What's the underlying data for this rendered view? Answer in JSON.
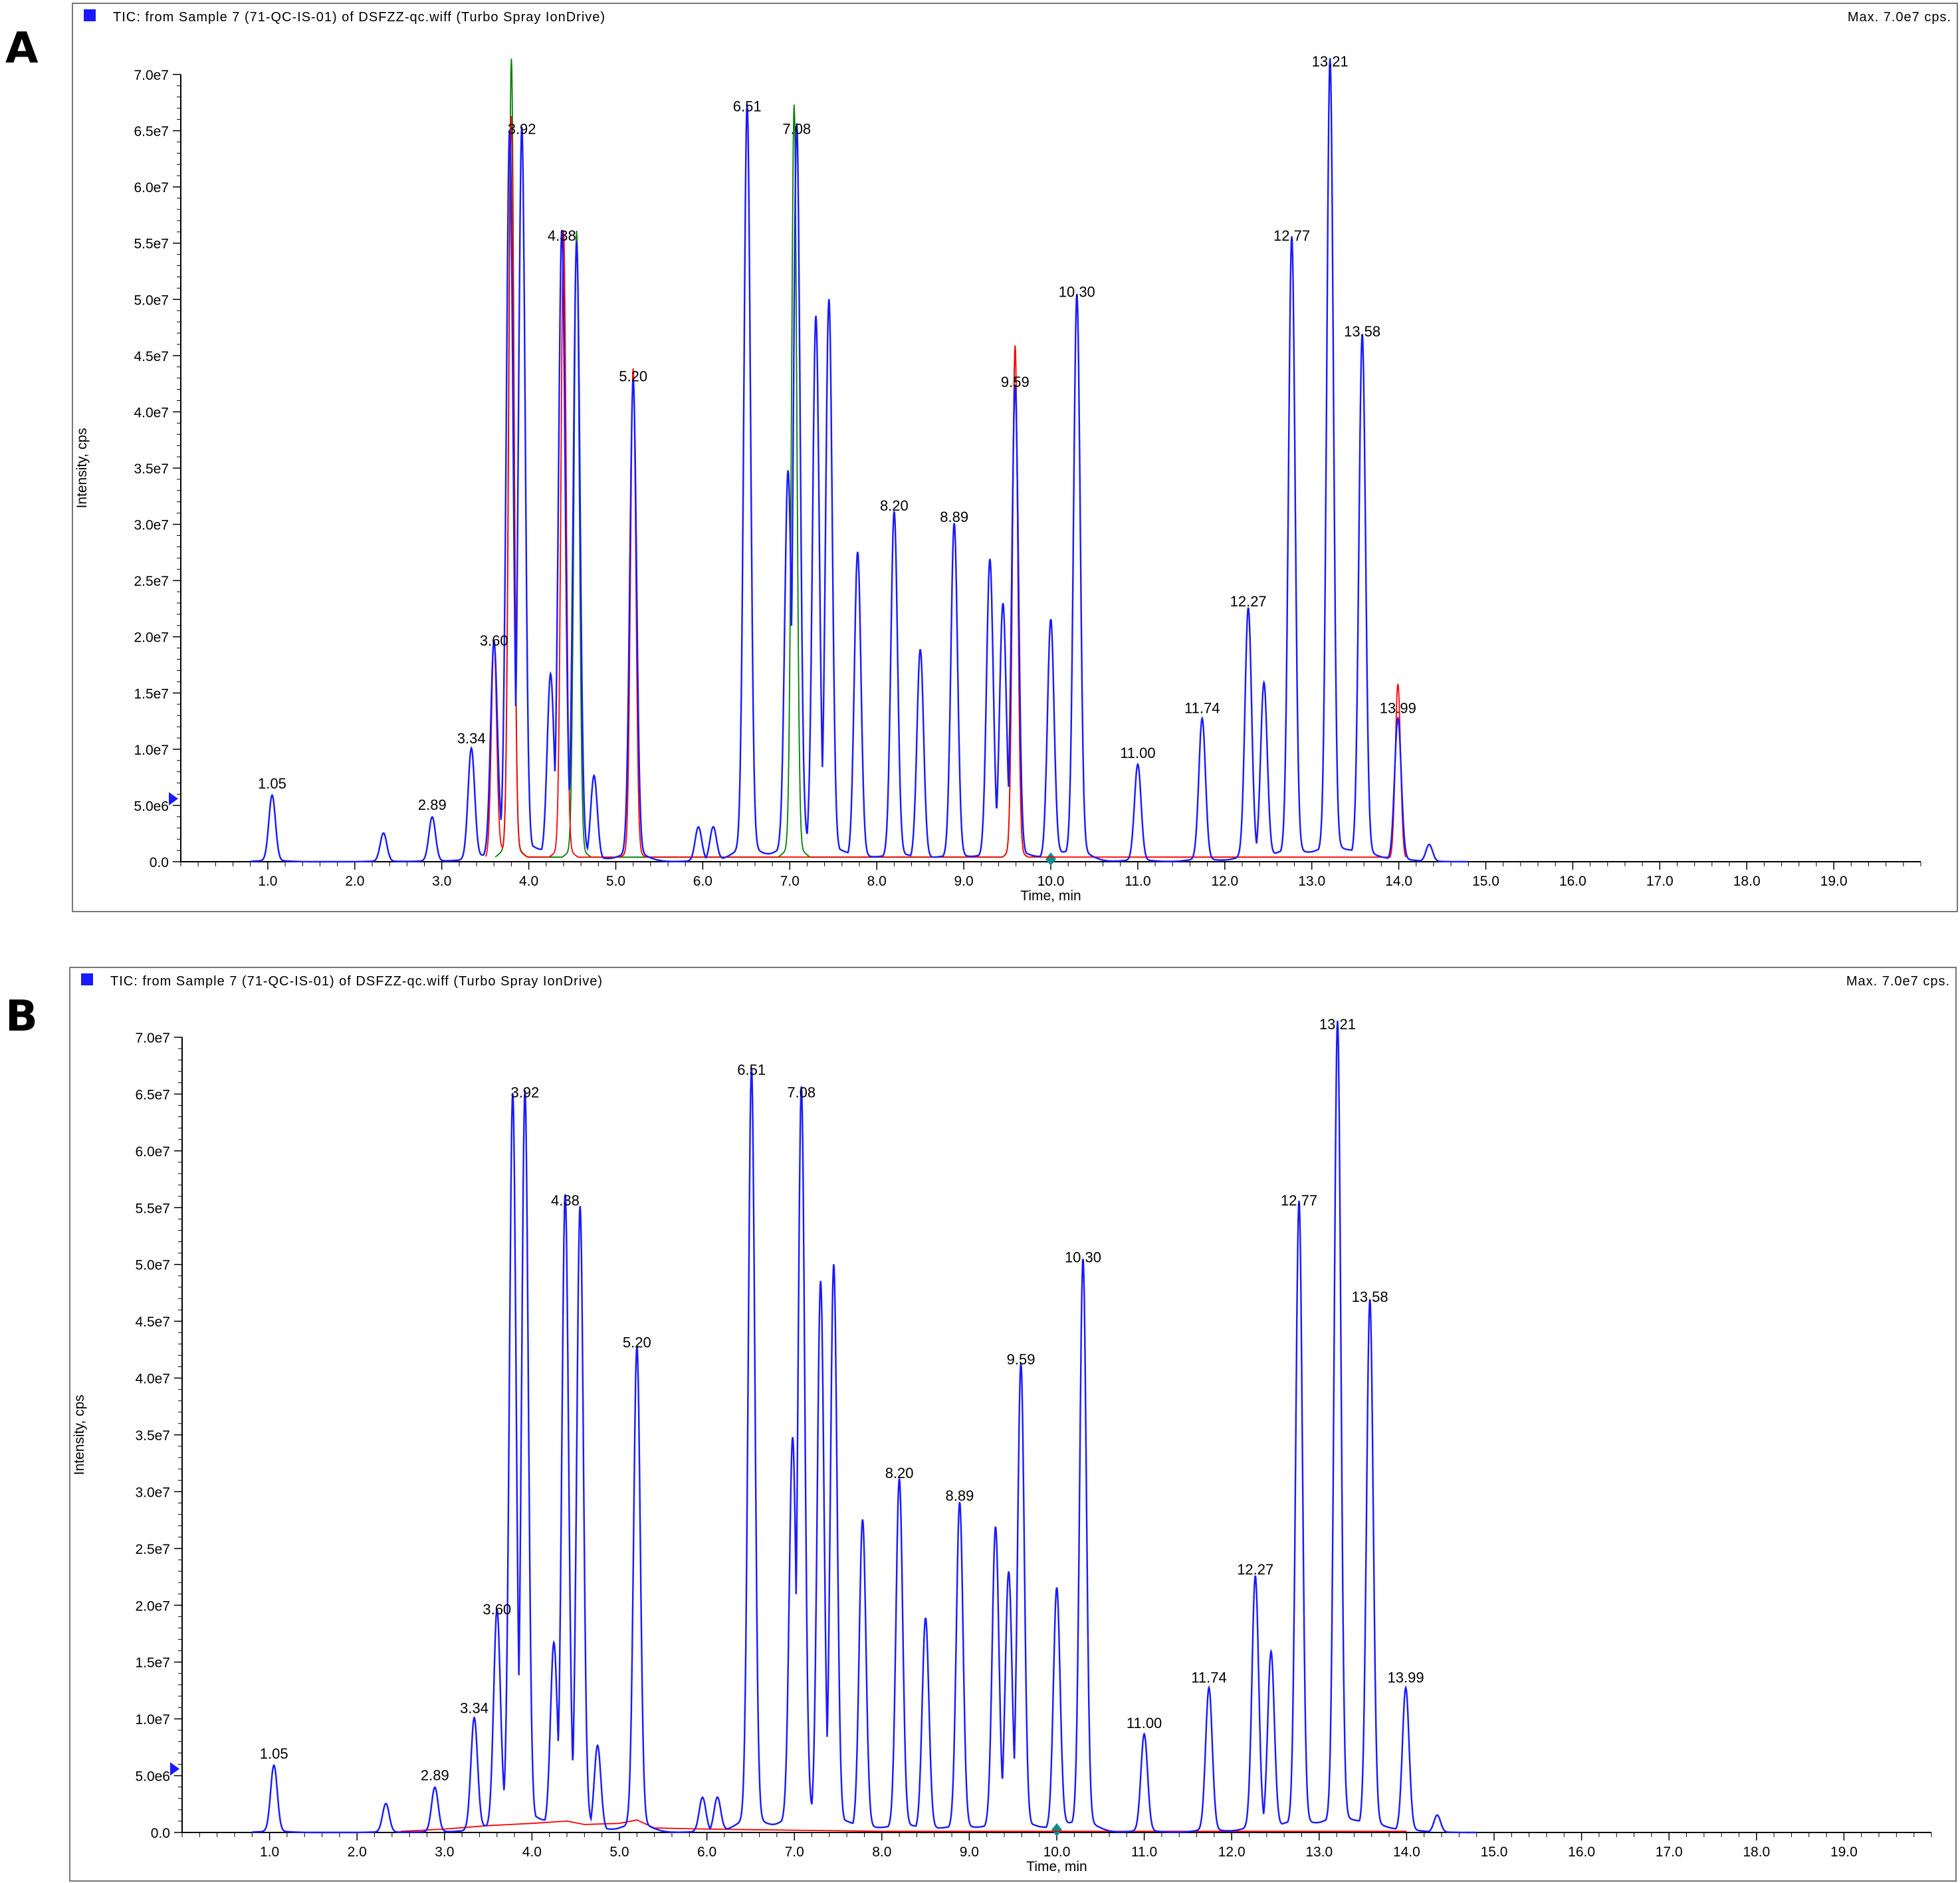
{
  "panels": [
    {
      "letter": "A",
      "title": "TIC: from Sample 7 (71-QC-IS-01) of DSFZZ-qc.wiff (Turbo Spray IonDrive)",
      "max_label": "Max. 7.0e7 cps.",
      "xlabel": "Time, min",
      "ylabel": "Intensity, cps",
      "peaks": [
        {
          "label": "1.05",
          "x": 1.05,
          "y": 5800000.0
        },
        {
          "label": "2.89",
          "x": 2.89,
          "y": 3900000.0
        },
        {
          "label": "3.34",
          "x": 3.34,
          "y": 9800000.0
        },
        {
          "label": "3.60",
          "x": 3.6,
          "y": 18500000.0
        },
        {
          "label": "3.92",
          "x": 3.92,
          "y": 64000000.0
        },
        {
          "label": "4.38",
          "x": 4.38,
          "y": 54500000.0
        },
        {
          "label": "5.20",
          "x": 5.2,
          "y": 42000000.0
        },
        {
          "label": "6.51",
          "x": 6.51,
          "y": 66000000.0
        },
        {
          "label": "7.08",
          "x": 7.08,
          "y": 64000000.0
        },
        {
          "label": "8.20",
          "x": 8.2,
          "y": 30500000.0
        },
        {
          "label": "8.89",
          "x": 8.89,
          "y": 29500000.0
        },
        {
          "label": "9.59",
          "x": 9.59,
          "y": 41500000.0
        },
        {
          "label": "10.30",
          "x": 10.3,
          "y": 49500000.0
        },
        {
          "label": "11.00",
          "x": 11.0,
          "y": 8500000.0
        },
        {
          "label": "11.74",
          "x": 11.74,
          "y": 12500000.0
        },
        {
          "label": "12.27",
          "x": 12.27,
          "y": 22000000.0
        },
        {
          "label": "12.77",
          "x": 12.77,
          "y": 54500000.0
        },
        {
          "label": "13.21",
          "x": 13.21,
          "y": 70000000.0
        },
        {
          "label": "13.58",
          "x": 13.58,
          "y": 46000000.0
        },
        {
          "label": "13.99",
          "x": 13.99,
          "y": 12500000.0
        }
      ]
    },
    {
      "letter": "B",
      "title": "TIC: from Sample 7 (71-QC-IS-01) of DSFZZ-qc.wiff (Turbo Spray IonDrive)",
      "max_label": "Max. 7.0e7 cps.",
      "xlabel": "Time, min",
      "ylabel": "Intensity, cps",
      "peaks": [
        {
          "label": "1.05",
          "x": 1.05,
          "y": 5800000.0
        },
        {
          "label": "2.89",
          "x": 2.89,
          "y": 3900000.0
        },
        {
          "label": "3.34",
          "x": 3.34,
          "y": 9800000.0
        },
        {
          "label": "3.60",
          "x": 3.6,
          "y": 18500000.0
        },
        {
          "label": "3.92",
          "x": 3.92,
          "y": 64000000.0
        },
        {
          "label": "4.38",
          "x": 4.38,
          "y": 54500000.0
        },
        {
          "label": "5.20",
          "x": 5.2,
          "y": 42000000.0
        },
        {
          "label": "6.51",
          "x": 6.51,
          "y": 66000000.0
        },
        {
          "label": "7.08",
          "x": 7.08,
          "y": 64000000.0
        },
        {
          "label": "8.20",
          "x": 8.2,
          "y": 30500000.0
        },
        {
          "label": "8.89",
          "x": 8.89,
          "y": 28500000.0
        },
        {
          "label": "9.59",
          "x": 9.59,
          "y": 40500000.0
        },
        {
          "label": "10.30",
          "x": 10.3,
          "y": 49500000.0
        },
        {
          "label": "11.00",
          "x": 11.0,
          "y": 8500000.0
        },
        {
          "label": "11.74",
          "x": 11.74,
          "y": 12500000.0
        },
        {
          "label": "12.27",
          "x": 12.27,
          "y": 22000000.0
        },
        {
          "label": "12.77",
          "x": 12.77,
          "y": 54500000.0
        },
        {
          "label": "13.21",
          "x": 13.21,
          "y": 70000000.0
        },
        {
          "label": "13.58",
          "x": 13.58,
          "y": 46000000.0
        },
        {
          "label": "13.99",
          "x": 13.99,
          "y": 12500000.0
        }
      ]
    }
  ],
  "chart_data": [
    {
      "type": "line",
      "title": "TIC: from Sample 7 (71-QC-IS-01) of DSFZZ-qc.wiff (Turbo Spray IonDrive)",
      "xlabel": "Time, min",
      "ylabel": "Intensity, cps",
      "xlim": [
        0.0,
        20.0
      ],
      "ylim": [
        0,
        70000000.0
      ],
      "xticks": [
        "1.0",
        "2.0",
        "3.0",
        "4.0",
        "5.0",
        "6.0",
        "7.0",
        "8.0",
        "9.0",
        "10.0",
        "11.0",
        "12.0",
        "13.0",
        "14.0",
        "15.0",
        "16.0",
        "17.0",
        "18.0",
        "19.0"
      ],
      "yticks": [
        "0.0",
        "5.0e6",
        "1.0e7",
        "1.5e7",
        "2.0e7",
        "2.5e7",
        "3.0e7",
        "3.5e7",
        "4.0e7",
        "4.5e7",
        "5.0e7",
        "5.5e7",
        "6.0e7",
        "6.5e7",
        "7.0e7"
      ],
      "series": [
        {
          "color": "#1a1aff",
          "x": [
            1.05,
            2.33,
            2.89,
            3.34,
            3.6,
            3.78,
            3.92,
            4.25,
            4.38,
            4.55,
            4.75,
            5.2,
            5.95,
            6.12,
            6.51,
            6.98,
            7.08,
            7.3,
            7.45,
            7.78,
            8.2,
            8.5,
            8.89,
            9.3,
            9.45,
            9.59,
            10.0,
            10.3,
            11.0,
            11.74,
            12.27,
            12.45,
            12.77,
            13.21,
            13.58,
            13.99,
            14.35
          ],
          "y": [
            5800000.0,
            2500000.0,
            3900000.0,
            9800000.0,
            18500000.0,
            63000000.0,
            64000000.0,
            15500000.0,
            54500000.0,
            54000000.0,
            7500000.0,
            42000000.0,
            3000000.0,
            3000000.0,
            66000000.0,
            33000000.0,
            64000000.0,
            47000000.0,
            49000000.0,
            27000000.0,
            30500000.0,
            18500000.0,
            29500000.0,
            26000000.0,
            22000000.0,
            41500000.0,
            21000000.0,
            49500000.0,
            8500000.0,
            12500000.0,
            22000000.0,
            15500000.0,
            54500000.0,
            70000000.0,
            46000000.0,
            12500000.0,
            1500000.0
          ]
        },
        {
          "color": "#ff0000",
          "x": [
            3.6,
            3.8,
            4.4,
            5.2,
            9.59,
            13.99
          ],
          "y": [
            19000000.0,
            65000000.0,
            55000000.0,
            43000000.0,
            45000000.0,
            15500000.0
          ]
        },
        {
          "color": "#008000",
          "x": [
            3.8,
            4.55,
            7.05,
            9.59
          ],
          "y": [
            70000000.0,
            55000000.0,
            66000000.0,
            45000000.0
          ]
        }
      ]
    },
    {
      "type": "line",
      "title": "TIC: from Sample 7 (71-QC-IS-01) of DSFZZ-qc.wiff (Turbo Spray IonDrive)",
      "xlabel": "Time, min",
      "ylabel": "Intensity, cps",
      "xlim": [
        0.0,
        20.0
      ],
      "ylim": [
        0,
        70000000.0
      ],
      "xticks": [
        "1.0",
        "2.0",
        "3.0",
        "4.0",
        "5.0",
        "6.0",
        "7.0",
        "8.0",
        "9.0",
        "10.0",
        "11.0",
        "12.0",
        "13.0",
        "14.0",
        "15.0",
        "16.0",
        "17.0",
        "18.0",
        "19.0"
      ],
      "yticks": [
        "0.0",
        "5.0e6",
        "1.0e7",
        "1.5e7",
        "2.0e7",
        "2.5e7",
        "3.0e7",
        "3.5e7",
        "4.0e7",
        "4.5e7",
        "5.0e7",
        "5.5e7",
        "6.0e7",
        "6.5e7",
        "7.0e7"
      ],
      "series": [
        {
          "color": "#1a1aff",
          "x": [
            1.05,
            2.33,
            2.89,
            3.34,
            3.6,
            3.78,
            3.92,
            4.25,
            4.38,
            4.55,
            4.75,
            5.2,
            5.95,
            6.12,
            6.51,
            6.98,
            7.08,
            7.3,
            7.45,
            7.78,
            8.2,
            8.5,
            8.89,
            9.3,
            9.45,
            9.59,
            10.0,
            10.3,
            11.0,
            11.74,
            12.27,
            12.45,
            12.77,
            13.21,
            13.58,
            13.99,
            14.35
          ],
          "y": [
            5800000.0,
            2500000.0,
            3900000.0,
            9800000.0,
            18500000.0,
            63000000.0,
            64000000.0,
            15500000.0,
            54500000.0,
            54000000.0,
            7500000.0,
            42000000.0,
            3000000.0,
            3000000.0,
            66000000.0,
            33000000.0,
            64000000.0,
            47000000.0,
            49000000.0,
            27000000.0,
            30500000.0,
            18500000.0,
            28500000.0,
            26000000.0,
            22000000.0,
            40500000.0,
            21000000.0,
            49500000.0,
            8500000.0,
            12500000.0,
            22000000.0,
            15500000.0,
            54500000.0,
            70000000.0,
            46000000.0,
            12500000.0,
            1500000.0
          ]
        },
        {
          "color": "#ff0000",
          "x": [
            2.5,
            3.0,
            3.5,
            4.0,
            4.4,
            4.6,
            5.0,
            5.2,
            5.4,
            6.0,
            7.0,
            8.0,
            9.0,
            10.0,
            11.0,
            12.0,
            13.0,
            14.0
          ],
          "y": [
            100000.0,
            300000.0,
            600000.0,
            800000.0,
            1000000.0,
            700000.0,
            800000.0,
            1100000.0,
            400000.0,
            300000.0,
            200000.0,
            100000.0,
            100000.0,
            100000.0,
            100000.0,
            100000.0,
            100000.0,
            100000.0
          ]
        }
      ]
    }
  ]
}
